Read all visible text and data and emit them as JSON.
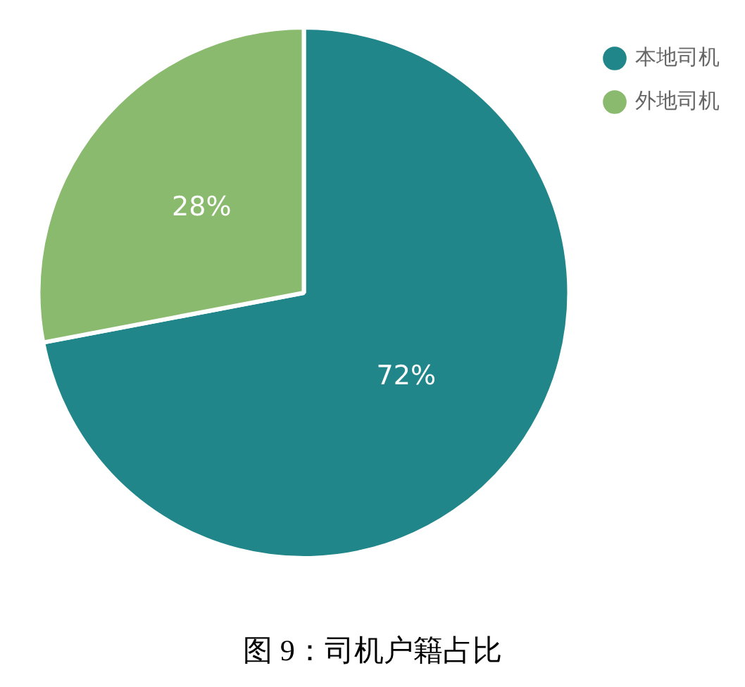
{
  "chart_data": {
    "type": "pie",
    "categories": [
      "本地司机",
      "外地司机"
    ],
    "values": [
      72,
      28
    ],
    "colors": [
      "#21868a",
      "#8aba6e"
    ],
    "value_labels": [
      "72%",
      "28%"
    ],
    "legend": "top right",
    "annotations": [
      "图 9：司机户籍占比"
    ]
  }
}
